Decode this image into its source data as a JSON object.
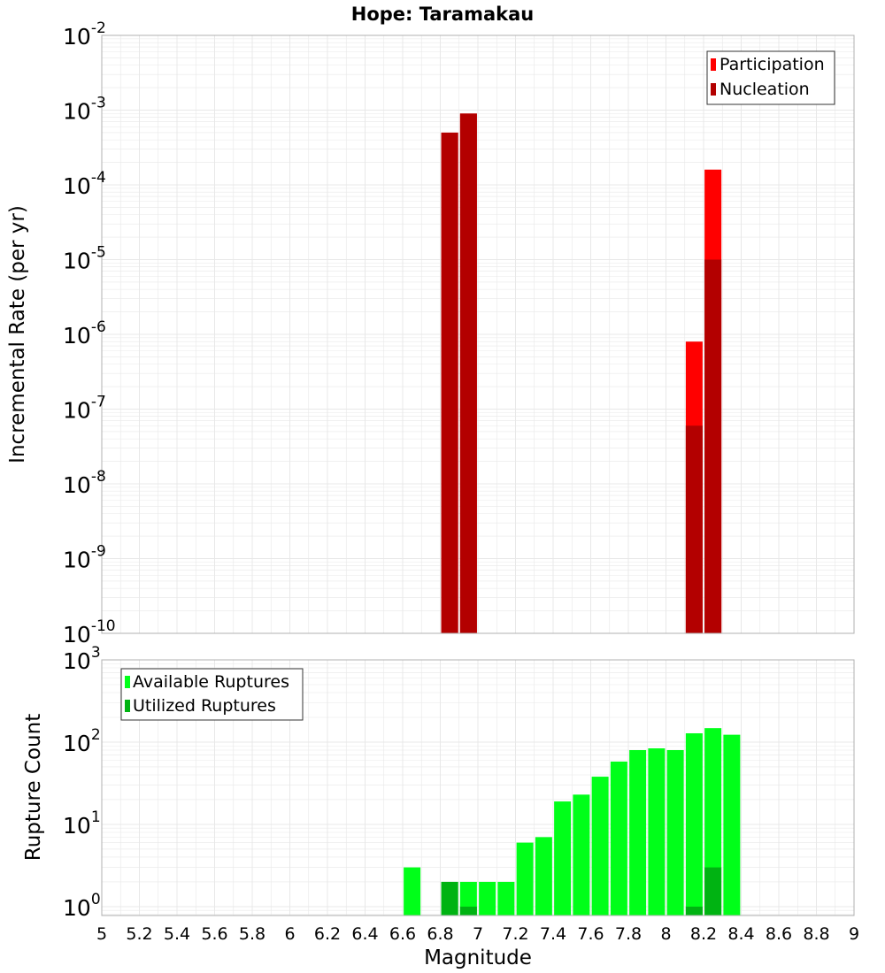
{
  "title": "Hope: Taramakau",
  "xlabel": "Magnitude",
  "x_ticks": [
    "5",
    "5.2",
    "5.4",
    "5.6",
    "5.8",
    "6",
    "6.2",
    "6.4",
    "6.6",
    "6.8",
    "7",
    "7.2",
    "7.4",
    "7.6",
    "7.8",
    "8",
    "8.2",
    "8.4",
    "8.6",
    "8.8",
    "9"
  ],
  "colors": {
    "participation": "#ff0000",
    "nucleation": "#b30000",
    "available": "#00ff19",
    "utilized": "#00b312",
    "grid": "#e8e8e8",
    "border": "#b0b0b0"
  },
  "chart_data": [
    {
      "type": "bar",
      "title": "Hope: Taramakau",
      "xlabel": "",
      "ylabel": "Incremental Rate (per yr)",
      "xlim": [
        5,
        9
      ],
      "ylim": [
        1e-10,
        0.01
      ],
      "yscale": "log",
      "grid": true,
      "legend_position": "top-right",
      "y_ticks": [
        {
          "base": "10",
          "exp": "-2",
          "value": 0.01
        },
        {
          "base": "10",
          "exp": "-3",
          "value": 0.001
        },
        {
          "base": "10",
          "exp": "-4",
          "value": 0.0001
        },
        {
          "base": "10",
          "exp": "-5",
          "value": 1e-05
        },
        {
          "base": "10",
          "exp": "-6",
          "value": 1e-06
        },
        {
          "base": "10",
          "exp": "-7",
          "value": 1e-07
        },
        {
          "base": "10",
          "exp": "-8",
          "value": 1e-08
        },
        {
          "base": "10",
          "exp": "-9",
          "value": 1e-09
        },
        {
          "base": "10",
          "exp": "-10",
          "value": 1e-10
        }
      ],
      "series": [
        {
          "name": "Participation",
          "x": [
            6.85,
            6.95,
            8.15,
            8.25
          ],
          "values": [
            0.0005,
            0.0009,
            8e-07,
            0.00016
          ]
        },
        {
          "name": "Nucleation",
          "x": [
            6.85,
            6.95,
            8.15,
            8.25
          ],
          "values": [
            0.0005,
            0.0009,
            6e-08,
            1e-05
          ]
        }
      ]
    },
    {
      "type": "bar",
      "title": "",
      "xlabel": "Magnitude",
      "ylabel": "Rupture Count",
      "xlim": [
        5,
        9
      ],
      "ylim": [
        0.78,
        1000
      ],
      "yscale": "log",
      "grid": true,
      "legend_position": "top-left",
      "y_ticks": [
        {
          "base": "10",
          "exp": "3",
          "value": 1000
        },
        {
          "base": "10",
          "exp": "2",
          "value": 100
        },
        {
          "base": "10",
          "exp": "1",
          "value": 10
        },
        {
          "base": "10",
          "exp": "0",
          "value": 1
        }
      ],
      "series": [
        {
          "name": "Available Ruptures",
          "x": [
            6.65,
            6.85,
            6.95,
            7.05,
            7.15,
            7.25,
            7.35,
            7.45,
            7.55,
            7.65,
            7.75,
            7.85,
            7.95,
            8.05,
            8.15,
            8.25,
            8.35
          ],
          "values": [
            3,
            2,
            2,
            2,
            2,
            6,
            7,
            19,
            23,
            38,
            58,
            80,
            84,
            80,
            128,
            148,
            123
          ]
        },
        {
          "name": "Utilized Ruptures",
          "x": [
            6.85,
            6.95,
            8.15,
            8.25
          ],
          "values": [
            2,
            1,
            1,
            3
          ]
        }
      ]
    }
  ]
}
